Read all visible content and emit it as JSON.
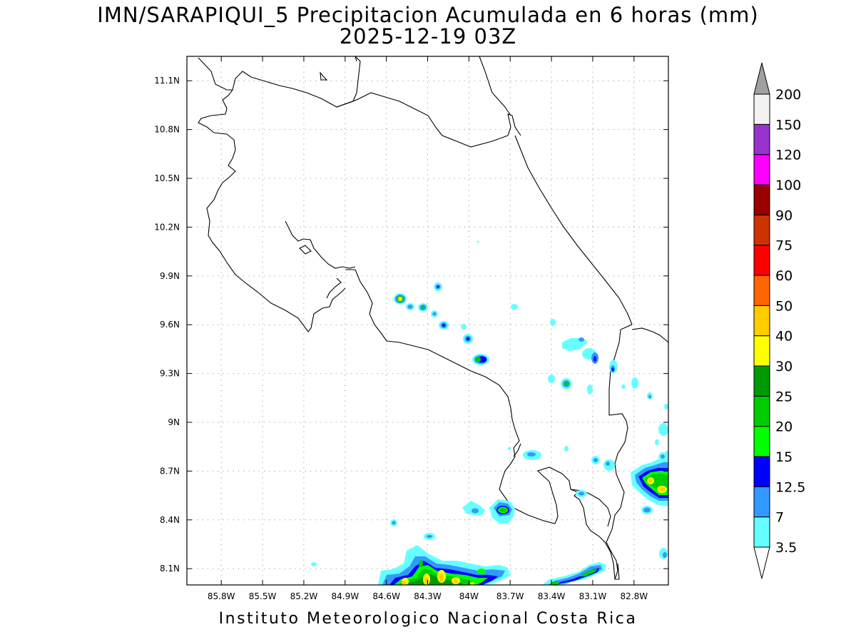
{
  "header": {
    "title": "IMN/SARAPIQUI_5 Precipitacion Acumulada en 6 horas (mm)",
    "subtitle": "2025-12-19 03Z"
  },
  "footer": {
    "credit": "Instituto Meteorologico Nacional Costa Rica"
  },
  "map": {
    "lon_range": [
      -86.05,
      -82.55
    ],
    "lat_range": [
      8.0,
      11.25
    ],
    "grid": "dotted",
    "lon_ticks": [
      {
        "value": -85.8,
        "label": "85.8W"
      },
      {
        "value": -85.5,
        "label": "85.5W"
      },
      {
        "value": -85.2,
        "label": "85.2W"
      },
      {
        "value": -84.9,
        "label": "84.9W"
      },
      {
        "value": -84.6,
        "label": "84.6W"
      },
      {
        "value": -84.3,
        "label": "84.3W"
      },
      {
        "value": -84.0,
        "label": "84W"
      },
      {
        "value": -83.7,
        "label": "83.7W"
      },
      {
        "value": -83.4,
        "label": "83.4W"
      },
      {
        "value": -83.1,
        "label": "83.1W"
      },
      {
        "value": -82.8,
        "label": "82.8W"
      }
    ],
    "lat_ticks": [
      {
        "value": 11.1,
        "label": "11.1N"
      },
      {
        "value": 10.8,
        "label": "10.8N"
      },
      {
        "value": 10.5,
        "label": "10.5N"
      },
      {
        "value": 10.2,
        "label": "10.2N"
      },
      {
        "value": 9.9,
        "label": "9.9N"
      },
      {
        "value": 9.6,
        "label": "9.6N"
      },
      {
        "value": 9.3,
        "label": "9.3N"
      },
      {
        "value": 9.0,
        "label": "9N"
      },
      {
        "value": 8.7,
        "label": "8.7N"
      },
      {
        "value": 8.4,
        "label": "8.4N"
      },
      {
        "value": 8.1,
        "label": "8.1N"
      }
    ]
  },
  "colorbar": {
    "levels": [
      {
        "label": "3.5",
        "color": "#66ffff"
      },
      {
        "label": "7",
        "color": "#3399ff"
      },
      {
        "label": "12.5",
        "color": "#0000ff"
      },
      {
        "label": "15",
        "color": "#00ff00"
      },
      {
        "label": "20",
        "color": "#00cc00"
      },
      {
        "label": "25",
        "color": "#009900"
      },
      {
        "label": "30",
        "color": "#ffff00"
      },
      {
        "label": "40",
        "color": "#ffcc00"
      },
      {
        "label": "50",
        "color": "#ff6600"
      },
      {
        "label": "60",
        "color": "#ff0000"
      },
      {
        "label": "75",
        "color": "#cc3300"
      },
      {
        "label": "90",
        "color": "#990000"
      },
      {
        "label": "100",
        "color": "#ff00ff"
      },
      {
        "label": "120",
        "color": "#9933cc"
      },
      {
        "label": "150",
        "color": "#f2f2f2"
      },
      {
        "label": "200",
        "color": ""
      }
    ],
    "top_arrow_color": "#a0a0a0",
    "bottom_arrow_color": "#ffffff"
  }
}
